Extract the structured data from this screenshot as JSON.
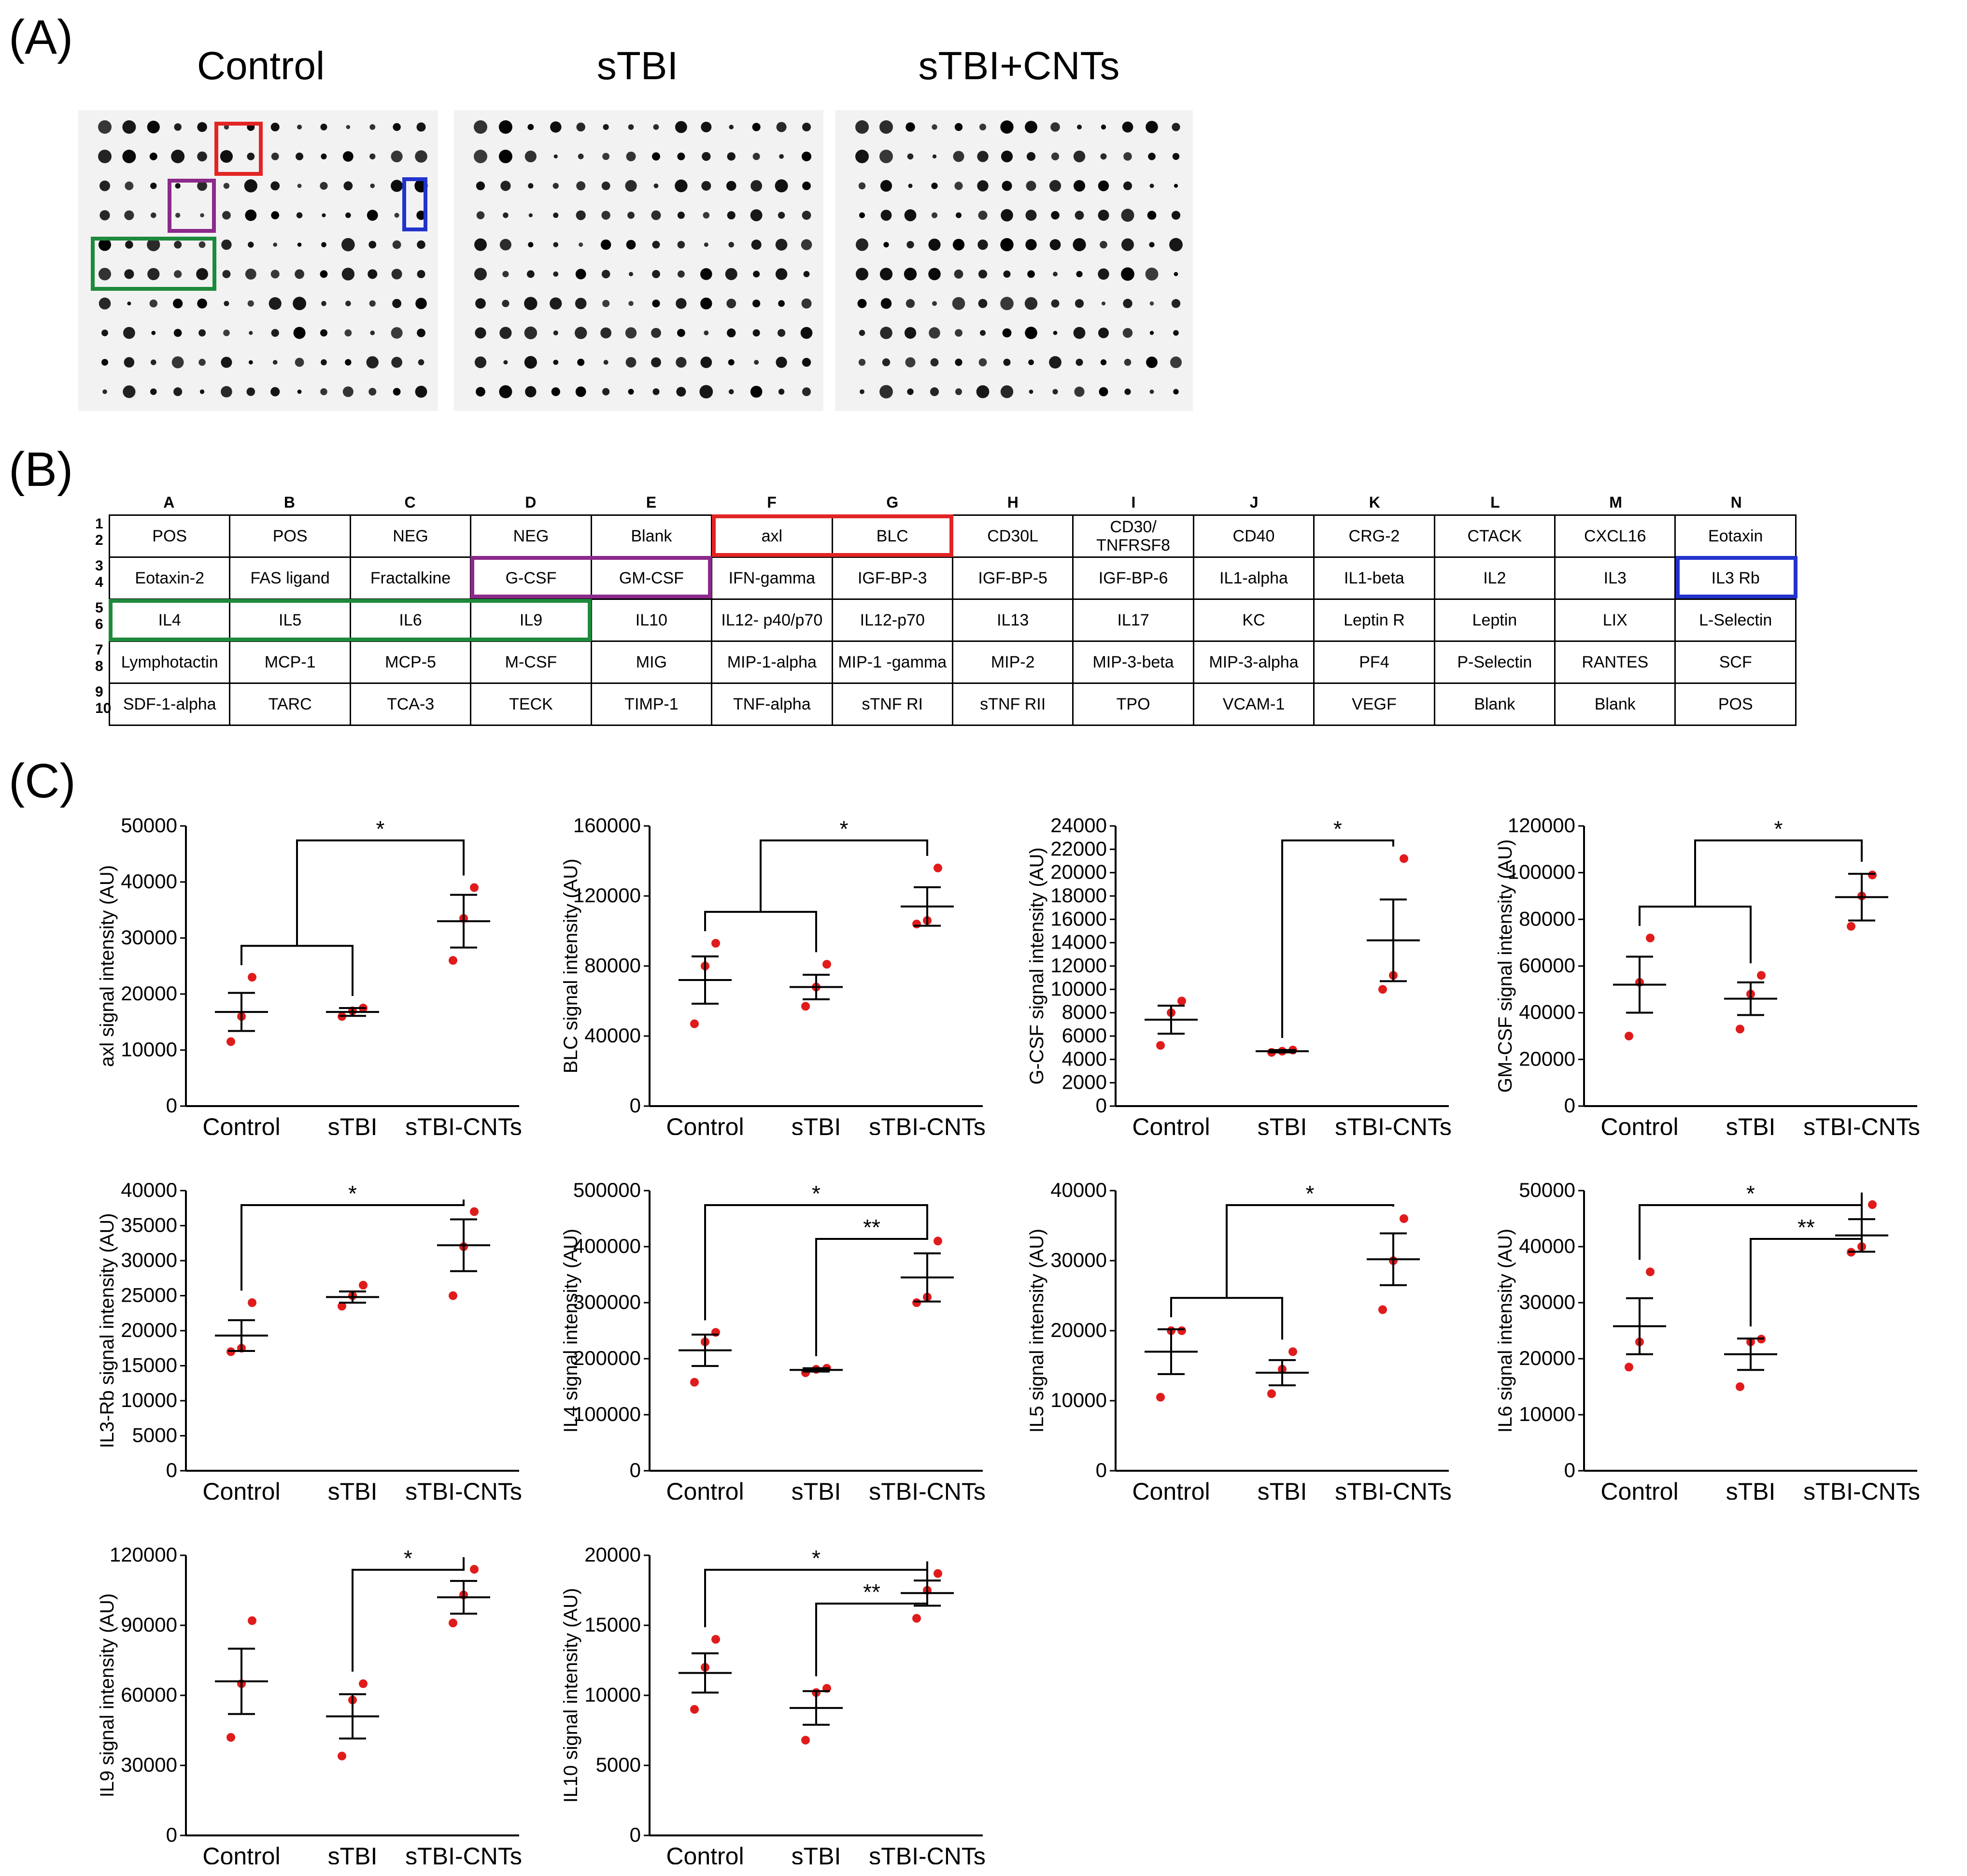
{
  "panels": {
    "a": "(A)",
    "b": "(B)",
    "c": "(C)"
  },
  "blots": [
    {
      "title": "Control"
    },
    {
      "title": "sTBI"
    },
    {
      "title": "sTBI+CNTs"
    }
  ],
  "highlight_colors": {
    "red": "#e32424",
    "purple": "#8b2a8b",
    "blue": "#2233cc",
    "green": "#1e8a3c"
  },
  "array": {
    "columns": [
      "A",
      "B",
      "C",
      "D",
      "E",
      "F",
      "G",
      "H",
      "I",
      "J",
      "K",
      "L",
      "M",
      "N"
    ],
    "row_numbers": [
      [
        "1",
        "2"
      ],
      [
        "3",
        "4"
      ],
      [
        "5",
        "6"
      ],
      [
        "7",
        "8"
      ],
      [
        "9",
        "10"
      ]
    ],
    "rows": [
      [
        "POS",
        "POS",
        "NEG",
        "NEG",
        "Blank",
        "axl",
        "BLC",
        "CD30L",
        "CD30/ TNFRSF8",
        "CD40",
        "CRG-2",
        "CTACK",
        "CXCL16",
        "Eotaxin"
      ],
      [
        "Eotaxin-2",
        "FAS ligand",
        "Fractalkine",
        "G-CSF",
        "GM-CSF",
        "IFN-gamma",
        "IGF-BP-3",
        "IGF-BP-5",
        "IGF-BP-6",
        "IL1-alpha",
        "IL1-beta",
        "IL2",
        "IL3",
        "IL3 Rb"
      ],
      [
        "IL4",
        "IL5",
        "IL6",
        "IL9",
        "IL10",
        "IL12- p40/p70",
        "IL12-p70",
        "IL13",
        "IL17",
        "KC",
        "Leptin R",
        "Leptin",
        "LIX",
        "L-Selectin"
      ],
      [
        "Lymphotactin",
        "MCP-1",
        "MCP-5",
        "M-CSF",
        "MIG",
        "MIP-1-alpha",
        "MIP-1 -gamma",
        "MIP-2",
        "MIP-3-beta",
        "MIP-3-alpha",
        "PF4",
        "P-Selectin",
        "RANTES",
        "SCF"
      ],
      [
        "SDF-1-alpha",
        "TARC",
        "TCA-3",
        "TECK",
        "TIMP-1",
        "TNF-alpha",
        "sTNF RI",
        "sTNF RII",
        "TPO",
        "VCAM-1",
        "VEGF",
        "Blank",
        "Blank",
        "POS"
      ]
    ]
  },
  "chart_data": [
    {
      "type": "scatter",
      "ylabel": "axl signal intensity (AU)",
      "categories": [
        "Control",
        "sTBI",
        "sTBI-CNTs"
      ],
      "ylim": [
        0,
        50000
      ],
      "yticks": [
        0,
        10000,
        20000,
        30000,
        40000,
        50000
      ],
      "series": [
        {
          "values": [
            [
              11500,
              16000,
              23000
            ],
            [
              16000,
              17000,
              17500
            ],
            [
              26000,
              33500,
              39000
            ]
          ]
        }
      ],
      "mean": [
        16800,
        16800,
        33000
      ],
      "sem": [
        3400,
        700,
        4700
      ],
      "significance": [
        {
          "label": "*",
          "type": "group",
          "from": [
            0,
            1
          ],
          "to": 2
        }
      ]
    },
    {
      "type": "scatter",
      "ylabel": "BLC signal intensity (AU)",
      "categories": [
        "Control",
        "sTBI",
        "sTBI-CNTs"
      ],
      "ylim": [
        0,
        160000
      ],
      "yticks": [
        0,
        40000,
        80000,
        120000,
        160000
      ],
      "series": [
        {
          "values": [
            [
              47000,
              80000,
              93000
            ],
            [
              57000,
              68000,
              81000
            ],
            [
              104000,
              106000,
              136000
            ]
          ]
        }
      ],
      "mean": [
        72000,
        68000,
        114000
      ],
      "sem": [
        13500,
        7000,
        11000
      ],
      "significance": [
        {
          "label": "*",
          "type": "group",
          "from": [
            0,
            1
          ],
          "to": 2
        }
      ]
    },
    {
      "type": "scatter",
      "ylabel": "G-CSF signal intensity (AU)",
      "categories": [
        "Control",
        "sTBI",
        "sTBI-CNTs"
      ],
      "ylim": [
        0,
        24000
      ],
      "yticks": [
        0,
        2000,
        4000,
        6000,
        8000,
        10000,
        12000,
        14000,
        16000,
        18000,
        20000,
        22000,
        24000
      ],
      "series": [
        {
          "values": [
            [
              5200,
              8000,
              9000
            ],
            [
              4600,
              4700,
              4800
            ],
            [
              10000,
              11200,
              21200
            ]
          ]
        }
      ],
      "mean": [
        7400,
        4700,
        14200
      ],
      "sem": [
        1200,
        100,
        3500
      ],
      "significance": [
        {
          "label": "*",
          "type": "pair",
          "from": 1,
          "to": 2
        }
      ]
    },
    {
      "type": "scatter",
      "ylabel": "GM-CSF signal intensity (AU)",
      "categories": [
        "Control",
        "sTBI",
        "sTBI-CNTs"
      ],
      "ylim": [
        0,
        120000
      ],
      "yticks": [
        0,
        20000,
        40000,
        60000,
        80000,
        100000,
        120000
      ],
      "series": [
        {
          "values": [
            [
              30000,
              53000,
              72000
            ],
            [
              33000,
              48000,
              56000
            ],
            [
              77000,
              90000,
              99000
            ]
          ]
        }
      ],
      "mean": [
        52000,
        46000,
        89500
      ],
      "sem": [
        12000,
        7000,
        10000
      ],
      "significance": [
        {
          "label": "*",
          "type": "group",
          "from": [
            0,
            1
          ],
          "to": 2
        }
      ]
    },
    {
      "type": "scatter",
      "ylabel": "IL3-Rb signal intensity (AU)",
      "categories": [
        "Control",
        "sTBI",
        "sTBI-CNTs"
      ],
      "ylim": [
        0,
        40000
      ],
      "yticks": [
        0,
        5000,
        10000,
        15000,
        20000,
        25000,
        30000,
        35000,
        40000
      ],
      "series": [
        {
          "values": [
            [
              17000,
              17500,
              24000
            ],
            [
              23500,
              25000,
              26500
            ],
            [
              25000,
              32000,
              37000
            ]
          ]
        }
      ],
      "mean": [
        19300,
        24800,
        32200
      ],
      "sem": [
        2200,
        800,
        3700
      ],
      "significance": [
        {
          "label": "*",
          "type": "pair",
          "from": 0,
          "to": 2
        }
      ]
    },
    {
      "type": "scatter",
      "ylabel": "IL4 signal intensity (AU)",
      "categories": [
        "Control",
        "sTBI",
        "sTBI-CNTs"
      ],
      "ylim": [
        0,
        500000
      ],
      "yticks": [
        0,
        100000,
        200000,
        300000,
        400000,
        500000
      ],
      "series": [
        {
          "values": [
            [
              158000,
              230000,
              247000
            ],
            [
              175000,
              181000,
              183000
            ],
            [
              300000,
              310000,
              410000
            ]
          ]
        }
      ],
      "mean": [
        215000,
        180000,
        345000
      ],
      "sem": [
        28000,
        3000,
        43000
      ],
      "significance": [
        {
          "label": "*",
          "type": "pair",
          "from": 0,
          "to": 2
        },
        {
          "label": "**",
          "type": "pair",
          "from": 1,
          "to": 2
        }
      ]
    },
    {
      "type": "scatter",
      "ylabel": "IL5 signal intensity (AU)",
      "categories": [
        "Control",
        "sTBI",
        "sTBI-CNTs"
      ],
      "ylim": [
        0,
        40000
      ],
      "yticks": [
        0,
        10000,
        20000,
        30000,
        40000
      ],
      "series": [
        {
          "values": [
            [
              10500,
              20000,
              20000
            ],
            [
              11000,
              14500,
              17000
            ],
            [
              23000,
              30000,
              36000
            ]
          ]
        }
      ],
      "mean": [
        17000,
        14000,
        30200
      ],
      "sem": [
        3200,
        1800,
        3700
      ],
      "significance": [
        {
          "label": "*",
          "type": "group",
          "from": [
            0,
            1
          ],
          "to": 2
        }
      ]
    },
    {
      "type": "scatter",
      "ylabel": "IL6 signal intensity (AU)",
      "categories": [
        "Control",
        "sTBI",
        "sTBI-CNTs"
      ],
      "ylim": [
        0,
        50000
      ],
      "yticks": [
        0,
        10000,
        20000,
        30000,
        40000,
        50000
      ],
      "series": [
        {
          "values": [
            [
              18500,
              23000,
              35500
            ],
            [
              15000,
              23000,
              23500
            ],
            [
              39000,
              40000,
              47500
            ]
          ]
        }
      ],
      "mean": [
        25800,
        20800,
        42000
      ],
      "sem": [
        5000,
        2800,
        2900
      ],
      "significance": [
        {
          "label": "*",
          "type": "pair",
          "from": 0,
          "to": 2
        },
        {
          "label": "**",
          "type": "pair",
          "from": 1,
          "to": 2
        }
      ]
    },
    {
      "type": "scatter",
      "ylabel": "IL9 signal intensity (AU)",
      "categories": [
        "Control",
        "sTBI",
        "sTBI-CNTs"
      ],
      "ylim": [
        0,
        120000
      ],
      "yticks": [
        0,
        30000,
        60000,
        90000,
        120000
      ],
      "series": [
        {
          "values": [
            [
              42000,
              65000,
              92000
            ],
            [
              34000,
              58000,
              65000
            ],
            [
              91000,
              103000,
              114000
            ]
          ]
        }
      ],
      "mean": [
        66000,
        51000,
        102000
      ],
      "sem": [
        14000,
        9500,
        7000
      ],
      "significance": [
        {
          "label": "*",
          "type": "pair",
          "from": 1,
          "to": 2
        }
      ]
    },
    {
      "type": "scatter",
      "ylabel": "IL10 signal intensity (AU)",
      "categories": [
        "Control",
        "sTBI",
        "sTBI-CNTs"
      ],
      "ylim": [
        0,
        20000
      ],
      "yticks": [
        0,
        5000,
        10000,
        15000,
        20000
      ],
      "series": [
        {
          "values": [
            [
              9000,
              12000,
              14000
            ],
            [
              6800,
              10200,
              10500
            ],
            [
              15500,
              17500,
              18700
            ]
          ]
        }
      ],
      "mean": [
        11600,
        9100,
        17300
      ],
      "sem": [
        1400,
        1200,
        900
      ],
      "significance": [
        {
          "label": "*",
          "type": "pair",
          "from": 0,
          "to": 2
        },
        {
          "label": "**",
          "type": "pair",
          "from": 1,
          "to": 2
        }
      ]
    }
  ]
}
